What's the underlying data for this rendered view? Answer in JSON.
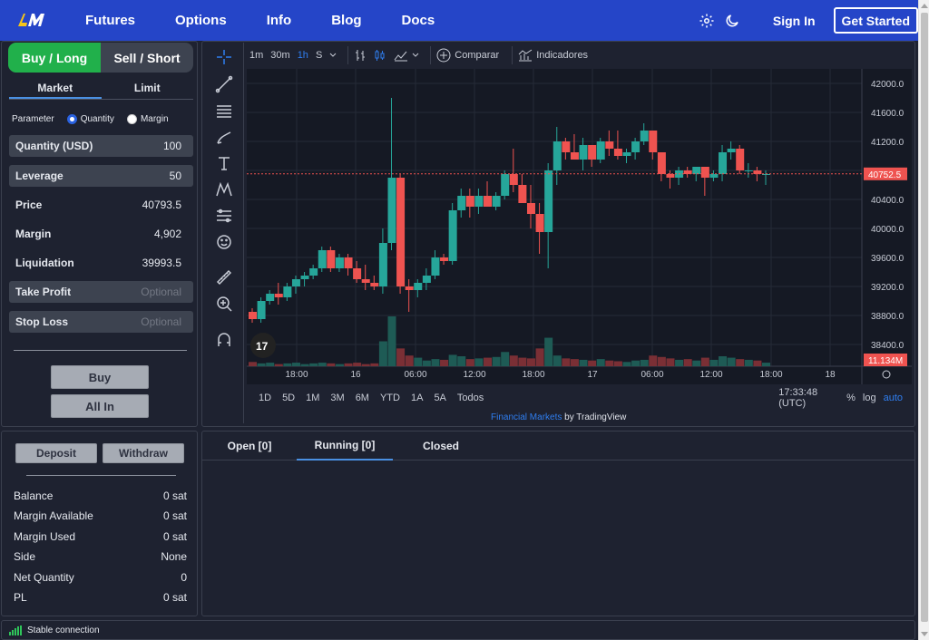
{
  "nav": {
    "logo_text": "LNM",
    "links": [
      "Futures",
      "Options",
      "Info",
      "Blog",
      "Docs"
    ],
    "sign_in": "Sign In",
    "get_started": "Get Started",
    "icons": [
      "gear-icon",
      "moon-icon"
    ]
  },
  "order": {
    "buy_tab": "Buy / Long",
    "sell_tab": "Sell / Short",
    "market_tab": "Market",
    "limit_tab": "Limit",
    "parameter_label": "Parameter",
    "opt_quantity": "Quantity",
    "opt_margin": "Margin",
    "quantity_label": "Quantity (USD)",
    "quantity_value": "100",
    "leverage_label": "Leverage",
    "leverage_value": "50",
    "price_label": "Price",
    "price_value": "40793.5",
    "margin_label": "Margin",
    "margin_value": "4,902",
    "liquidation_label": "Liquidation",
    "liquidation_value": "39993.5",
    "take_profit_label": "Take Profit",
    "take_profit_placeholder": "Optional",
    "stop_loss_label": "Stop Loss",
    "stop_loss_placeholder": "Optional",
    "buy_button": "Buy",
    "all_in_button": "All In"
  },
  "chart_toolbar": {
    "intervals": [
      "1m",
      "30m",
      "1h",
      "S"
    ],
    "active_interval": "1h",
    "compare": "Comparar",
    "indicators": "Indicadores"
  },
  "chart_bottom": {
    "ranges": [
      "1D",
      "5D",
      "1M",
      "3M",
      "6M",
      "YTD",
      "1A",
      "5A",
      "Todos"
    ],
    "time": "17:33:48 (UTC)",
    "percent": "%",
    "log": "log",
    "auto": "auto"
  },
  "credit": {
    "link": "Financial Markets",
    "by": "by TradingView"
  },
  "chart_data": {
    "type": "candlestick",
    "y_ticks": [
      "42000.0",
      "41600.0",
      "41200.0",
      "40800.0",
      "40400.0",
      "40000.0",
      "39600.0",
      "39200.0",
      "38800.0",
      "38400.0"
    ],
    "x_ticks": [
      "18:00",
      "16",
      "06:00",
      "12:00",
      "18:00",
      "17",
      "06:00",
      "12:00",
      "18:00",
      "18"
    ],
    "last_price_label": "40752.5",
    "volume_label": "11.134M",
    "ylim": [
      38200,
      42200
    ],
    "candles": [
      [
        38850,
        38900,
        38700,
        38750
      ],
      [
        38750,
        39050,
        38700,
        39000
      ],
      [
        39000,
        39150,
        38950,
        39100
      ],
      [
        39100,
        39250,
        38950,
        39050
      ],
      [
        39050,
        39250,
        39000,
        39200
      ],
      [
        39200,
        39350,
        39100,
        39300
      ],
      [
        39300,
        39400,
        39200,
        39350
      ],
      [
        39350,
        39500,
        39300,
        39450
      ],
      [
        39450,
        39750,
        39400,
        39700
      ],
      [
        39700,
        39750,
        39400,
        39450
      ],
      [
        39450,
        39650,
        39400,
        39600
      ],
      [
        39600,
        39650,
        39350,
        39450
      ],
      [
        39450,
        39550,
        39250,
        39300
      ],
      [
        39300,
        39500,
        39150,
        39250
      ],
      [
        39250,
        39350,
        39150,
        39200
      ],
      [
        39200,
        40000,
        39100,
        39800
      ],
      [
        39800,
        41800,
        39700,
        40700
      ],
      [
        40700,
        40750,
        39100,
        39200
      ],
      [
        39200,
        39300,
        38850,
        39150
      ],
      [
        39150,
        39300,
        39050,
        39250
      ],
      [
        39250,
        39450,
        39150,
        39350
      ],
      [
        39350,
        39700,
        39300,
        39600
      ],
      [
        39600,
        39650,
        39500,
        39550
      ],
      [
        39550,
        40350,
        39500,
        40250
      ],
      [
        40250,
        40550,
        40150,
        40450
      ],
      [
        40450,
        40550,
        40150,
        40300
      ],
      [
        40300,
        40550,
        40200,
        40450
      ],
      [
        40450,
        40650,
        40300,
        40300
      ],
      [
        40300,
        40500,
        40250,
        40450
      ],
      [
        40450,
        40800,
        40400,
        40750
      ],
      [
        40750,
        41100,
        40500,
        40600
      ],
      [
        40600,
        40750,
        40350,
        40350
      ],
      [
        40350,
        40600,
        40000,
        40200
      ],
      [
        40200,
        40350,
        39650,
        39950
      ],
      [
        39950,
        40900,
        39450,
        40800
      ],
      [
        40800,
        41400,
        40600,
        41200
      ],
      [
        41200,
        41250,
        40950,
        41050
      ],
      [
        41050,
        41300,
        40950,
        40950
      ],
      [
        40950,
        41250,
        40800,
        41150
      ],
      [
        41150,
        41150,
        40850,
        40950
      ],
      [
        40950,
        41250,
        40900,
        41200
      ],
      [
        41200,
        41350,
        41000,
        41100
      ],
      [
        41100,
        41350,
        40950,
        41000
      ],
      [
        41000,
        41100,
        40900,
        41050
      ],
      [
        41050,
        41250,
        40950,
        41200
      ],
      [
        41200,
        41450,
        41150,
        41350
      ],
      [
        41350,
        41350,
        40950,
        41050
      ],
      [
        41050,
        41050,
        40650,
        40750
      ],
      [
        40750,
        40800,
        40550,
        40700
      ],
      [
        40700,
        40850,
        40600,
        40800
      ],
      [
        40800,
        40850,
        40700,
        40750
      ],
      [
        40750,
        40850,
        40650,
        40850
      ],
      [
        40850,
        40850,
        40450,
        40700
      ],
      [
        40700,
        40800,
        40650,
        40750
      ],
      [
        40750,
        41150,
        40650,
        41050
      ],
      [
        41050,
        41200,
        40950,
        41100
      ],
      [
        41100,
        41150,
        40750,
        40800
      ],
      [
        40800,
        40900,
        40700,
        40800
      ],
      [
        40800,
        40850,
        40650,
        40750
      ],
      [
        40750,
        40800,
        40600,
        40750
      ]
    ],
    "volumes": [
      0.6,
      0.4,
      0.5,
      0.3,
      0.4,
      0.5,
      0.3,
      0.4,
      0.5,
      0.4,
      0.3,
      0.4,
      0.5,
      0.3,
      0.4,
      3.5,
      7.0,
      2.5,
      1.5,
      1.2,
      0.8,
      1.0,
      0.9,
      1.6,
      1.4,
      1.0,
      1.1,
      1.2,
      1.3,
      2.0,
      1.5,
      1.2,
      1.1,
      2.5,
      4.0,
      1.5,
      1.1,
      1.0,
      0.9,
      0.8,
      1.0,
      0.8,
      0.7,
      0.6,
      0.8,
      0.9,
      1.5,
      1.3,
      1.1,
      0.9,
      1.0,
      0.8,
      1.2,
      0.9,
      1.4,
      1.2,
      1.0,
      0.9,
      0.8,
      0.5
    ]
  },
  "positions": {
    "tabs": [
      "Open [0]",
      "Running [0]",
      "Closed"
    ]
  },
  "account": {
    "deposit": "Deposit",
    "withdraw": "Withdraw",
    "rows": [
      {
        "label": "Balance",
        "value": "0 sat"
      },
      {
        "label": "Margin Available",
        "value": "0 sat"
      },
      {
        "label": "Margin Used",
        "value": "0 sat"
      },
      {
        "label": "Side",
        "value": "None"
      },
      {
        "label": "Net Quantity",
        "value": "0"
      },
      {
        "label": "PL",
        "value": "0 sat"
      }
    ]
  },
  "status": {
    "text": "Stable connection"
  },
  "colors": {
    "up": "#26a69a",
    "down": "#ef5350",
    "accent": "#2545c8",
    "buy": "#21b04b"
  }
}
